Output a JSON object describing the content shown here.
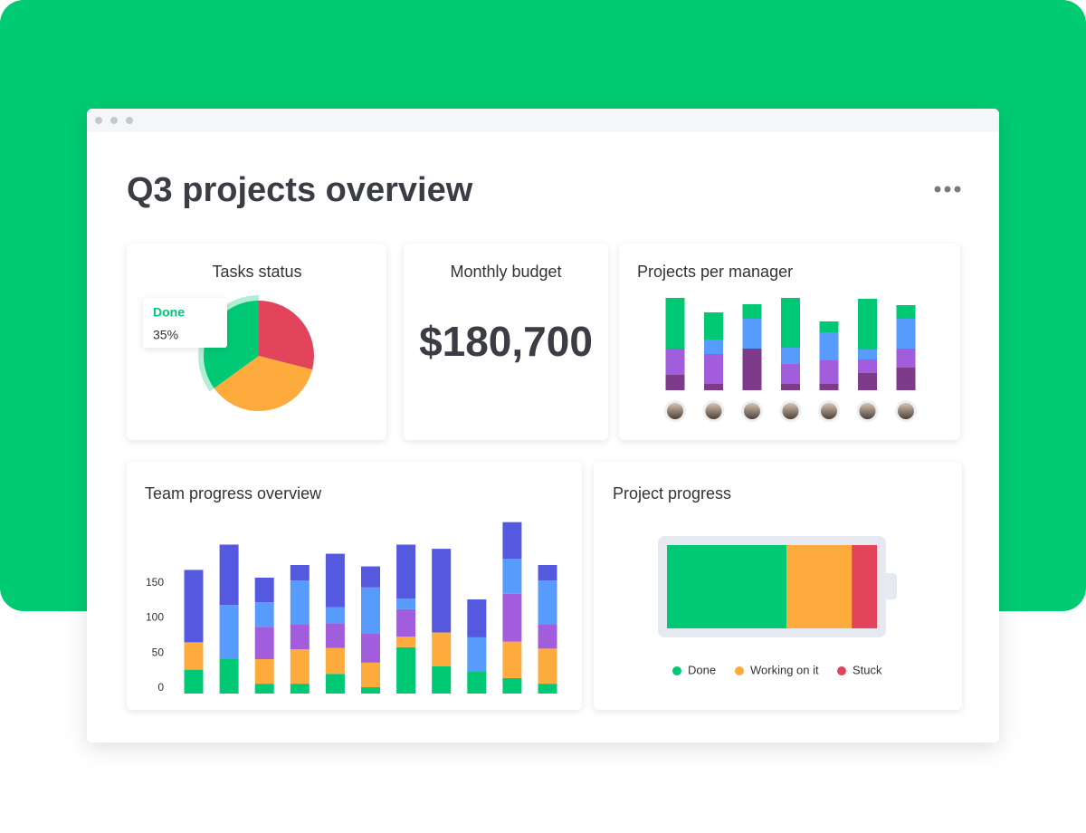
{
  "header": {
    "title": "Q3 projects overview"
  },
  "budget": {
    "title": "Monthly budget",
    "value": "$180,700"
  },
  "chart_data": [
    {
      "type": "pie",
      "title": "Tasks status",
      "categories": [
        "Done",
        "Working on it",
        "Stuck"
      ],
      "values": [
        35,
        36,
        29
      ],
      "value_labels": [
        "35%",
        null,
        null
      ],
      "colors": [
        "#00c875",
        "#fdab3d",
        "#e2445c"
      ]
    },
    {
      "type": "bar",
      "stacked": true,
      "title": "Projects per manager",
      "categories": [
        null,
        null,
        null,
        null,
        null,
        null,
        null
      ],
      "series": [
        {
          "color": "#7e3b8a",
          "values": [
            17,
            7,
            46,
            7,
            7,
            19,
            25
          ]
        },
        {
          "color": "#a25ddc",
          "values": [
            29,
            33,
            0,
            22,
            26,
            15,
            21
          ]
        },
        {
          "color": "#579bfc",
          "values": [
            0,
            16,
            33,
            18,
            31,
            11,
            33
          ]
        },
        {
          "color": "#00c875",
          "values": [
            56,
            30,
            16,
            55,
            12,
            56,
            15
          ]
        }
      ]
    },
    {
      "type": "bar",
      "stacked": true,
      "title": "Team progress overview",
      "categories": [
        null,
        null,
        null,
        null,
        null,
        null,
        null,
        null,
        null,
        null,
        null
      ],
      "ylim": [
        0,
        250
      ],
      "yticks": [
        0,
        50,
        100,
        150
      ],
      "series": [
        {
          "color": "#00c875",
          "values": [
            34,
            50,
            14,
            14,
            28,
            9,
            66,
            39,
            32,
            22,
            14
          ]
        },
        {
          "color": "#fdab3d",
          "values": [
            39,
            0,
            35,
            49,
            37,
            35,
            15,
            48,
            0,
            52,
            50
          ]
        },
        {
          "color": "#a25ddc",
          "values": [
            0,
            0,
            46,
            36,
            35,
            41,
            39,
            0,
            0,
            68,
            35
          ]
        },
        {
          "color": "#579bfc",
          "values": [
            0,
            76,
            35,
            62,
            23,
            66,
            15,
            0,
            48,
            50,
            62
          ]
        },
        {
          "color": "#5559df",
          "values": [
            103,
            86,
            35,
            22,
            76,
            30,
            77,
            119,
            54,
            52,
            22
          ]
        }
      ]
    },
    {
      "type": "progress",
      "title": "Project progress",
      "legend": "bottom",
      "series": [
        {
          "name": "Done",
          "color": "#00c875",
          "values": [
            57
          ]
        },
        {
          "name": "Working on it",
          "color": "#fdab3d",
          "values": [
            31
          ]
        },
        {
          "name": "Stuck",
          "color": "#e2445c",
          "values": [
            12
          ]
        }
      ]
    }
  ]
}
